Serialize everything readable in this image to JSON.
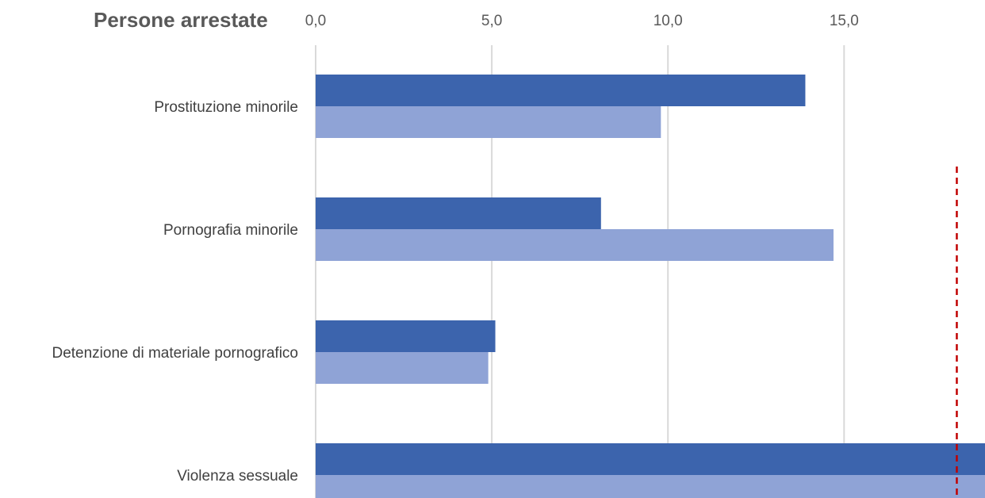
{
  "chart_data": {
    "type": "bar",
    "orientation": "horizontal",
    "title": "Persone arrestate",
    "categories": [
      "Prostituzione minorile",
      "Pornografia minorile",
      "Detenzione di materiale pornografico",
      "Violenza sessuale"
    ],
    "series": [
      {
        "values": [
          13.9,
          8.1,
          5.1,
          19.0
        ],
        "color": "#3c64ad"
      },
      {
        "values": [
          9.8,
          14.7,
          4.9,
          19.0
        ],
        "color": "#8fa3d6"
      }
    ],
    "xlim": [
      0,
      19
    ],
    "x_ticks": [
      "0,0",
      "5,0",
      "10,0",
      "15,0"
    ],
    "x_tick_values": [
      0,
      5,
      10,
      15
    ],
    "x_axis_position": "top",
    "grid": true,
    "reference_line": {
      "value": 18.2,
      "color": "#c00000",
      "style": "dashed"
    }
  }
}
